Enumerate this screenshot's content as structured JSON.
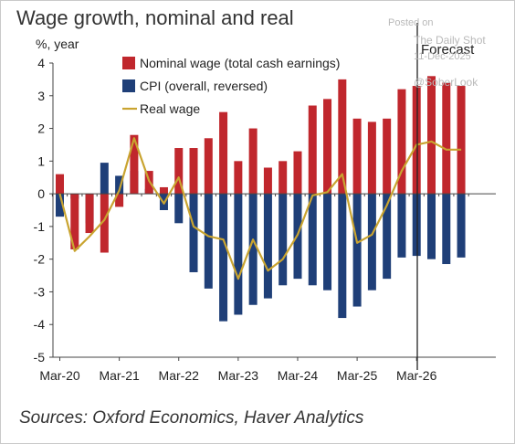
{
  "header": {
    "title": "Wage growth, nominal and real",
    "unit": "%, year"
  },
  "watermark": {
    "line1": "Posted on",
    "line2": "The Daily Shot",
    "line3": "11-Dec-2025",
    "line4": "@SoberLook"
  },
  "source": "Sources: Oxford Economics, Haver Analytics",
  "colors": {
    "nominal": "#c0272d",
    "cpi": "#1f3f78",
    "real": "#c9a430",
    "axis": "#444444",
    "forecast_line": "#222222"
  },
  "chart_data": {
    "type": "bar",
    "ylim": [
      -5,
      4
    ],
    "yticks": [
      "4",
      "3",
      "2",
      "1",
      "0",
      "-1",
      "-2",
      "-3",
      "-4",
      "-5"
    ],
    "xtick_labels": [
      "Mar-20",
      "Mar-21",
      "Mar-22",
      "Mar-23",
      "Mar-24",
      "Mar-25",
      "Mar-26"
    ],
    "forecast_label": "Forecast",
    "legend_position": "top",
    "categories": [
      "Mar-20",
      "Jun-20",
      "Sep-20",
      "Dec-20",
      "Mar-21",
      "Jun-21",
      "Sep-21",
      "Dec-21",
      "Mar-22",
      "Jun-22",
      "Sep-22",
      "Dec-22",
      "Mar-23",
      "Jun-23",
      "Sep-23",
      "Dec-23",
      "Mar-24",
      "Jun-24",
      "Sep-24",
      "Dec-24",
      "Mar-25",
      "Jun-25",
      "Sep-25",
      "Dec-25",
      "Mar-26",
      "Jun-26",
      "Sep-26",
      "Dec-26"
    ],
    "series": [
      {
        "name": "Nominal wage (total cash earnings)",
        "kind": "bar",
        "values": [
          0.6,
          -1.7,
          -1.2,
          -1.8,
          -0.4,
          1.8,
          0.7,
          0.2,
          1.4,
          1.4,
          1.7,
          2.5,
          1.0,
          2.0,
          0.8,
          1.0,
          1.3,
          2.7,
          2.9,
          3.5,
          2.3,
          2.2,
          2.3,
          3.2,
          3.3,
          3.6,
          3.4,
          3.3
        ]
      },
      {
        "name": "CPI (overall, reversed)",
        "kind": "bar",
        "values": [
          -0.7,
          -0.15,
          -0.9,
          0.95,
          0.55,
          0.7,
          0.15,
          -0.5,
          -0.9,
          -2.4,
          -2.9,
          -3.9,
          -3.7,
          -3.4,
          -3.2,
          -2.8,
          -2.6,
          -2.8,
          -2.95,
          -3.8,
          -3.45,
          -2.95,
          -2.6,
          -1.95,
          -1.9,
          -2.0,
          -2.15,
          -1.95
        ]
      },
      {
        "name": "Real wage",
        "kind": "line",
        "values": [
          0.0,
          -1.75,
          -1.3,
          -0.8,
          0.1,
          1.7,
          0.4,
          -0.3,
          0.5,
          -1.0,
          -1.3,
          -1.4,
          -2.6,
          -1.4,
          -2.35,
          -2.0,
          -1.25,
          -0.05,
          0.05,
          0.6,
          -1.5,
          -1.25,
          -0.35,
          0.7,
          1.5,
          1.6,
          1.35,
          1.35
        ]
      }
    ]
  }
}
